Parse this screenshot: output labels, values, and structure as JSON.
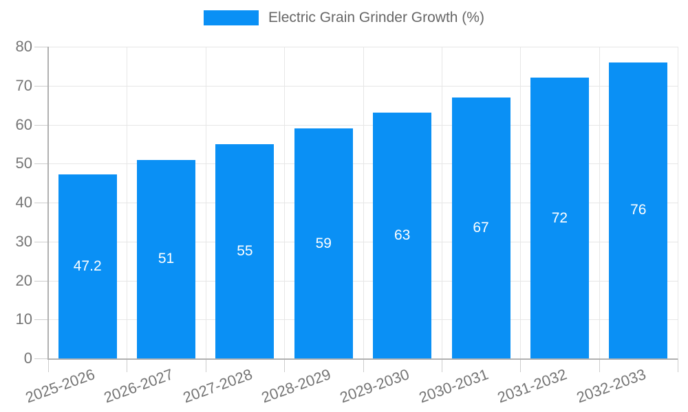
{
  "chart_data": {
    "type": "bar",
    "title": "Electric Grain Grinder Growth (%)",
    "legend_position": "top",
    "legend": [
      {
        "label": "Electric Grain Grinder Growth (%)",
        "color": "#0a90f5"
      }
    ],
    "categories": [
      "2025-2026",
      "2026-2027",
      "2027-2028",
      "2028-2029",
      "2029-2030",
      "2030-2031",
      "2031-2032",
      "2032-2033"
    ],
    "values": [
      47.2,
      51,
      55,
      59,
      63,
      67,
      72,
      76
    ],
    "value_labels": [
      "47.2",
      "51",
      "55",
      "59",
      "63",
      "67",
      "72",
      "76"
    ],
    "xlabel": "",
    "ylabel": "",
    "ylim": [
      0,
      80
    ],
    "yticks": [
      0,
      10,
      20,
      30,
      40,
      50,
      60,
      70,
      80
    ],
    "grid": true,
    "colors": {
      "bar": "#0a90f5",
      "value_label": "#ffffff",
      "axis_label": "#757575",
      "legend_text": "#666666",
      "gridline": "#e6e6e6",
      "axis_line": "#b0b0b0",
      "tick": "#cccccc",
      "background": "#ffffff"
    }
  }
}
